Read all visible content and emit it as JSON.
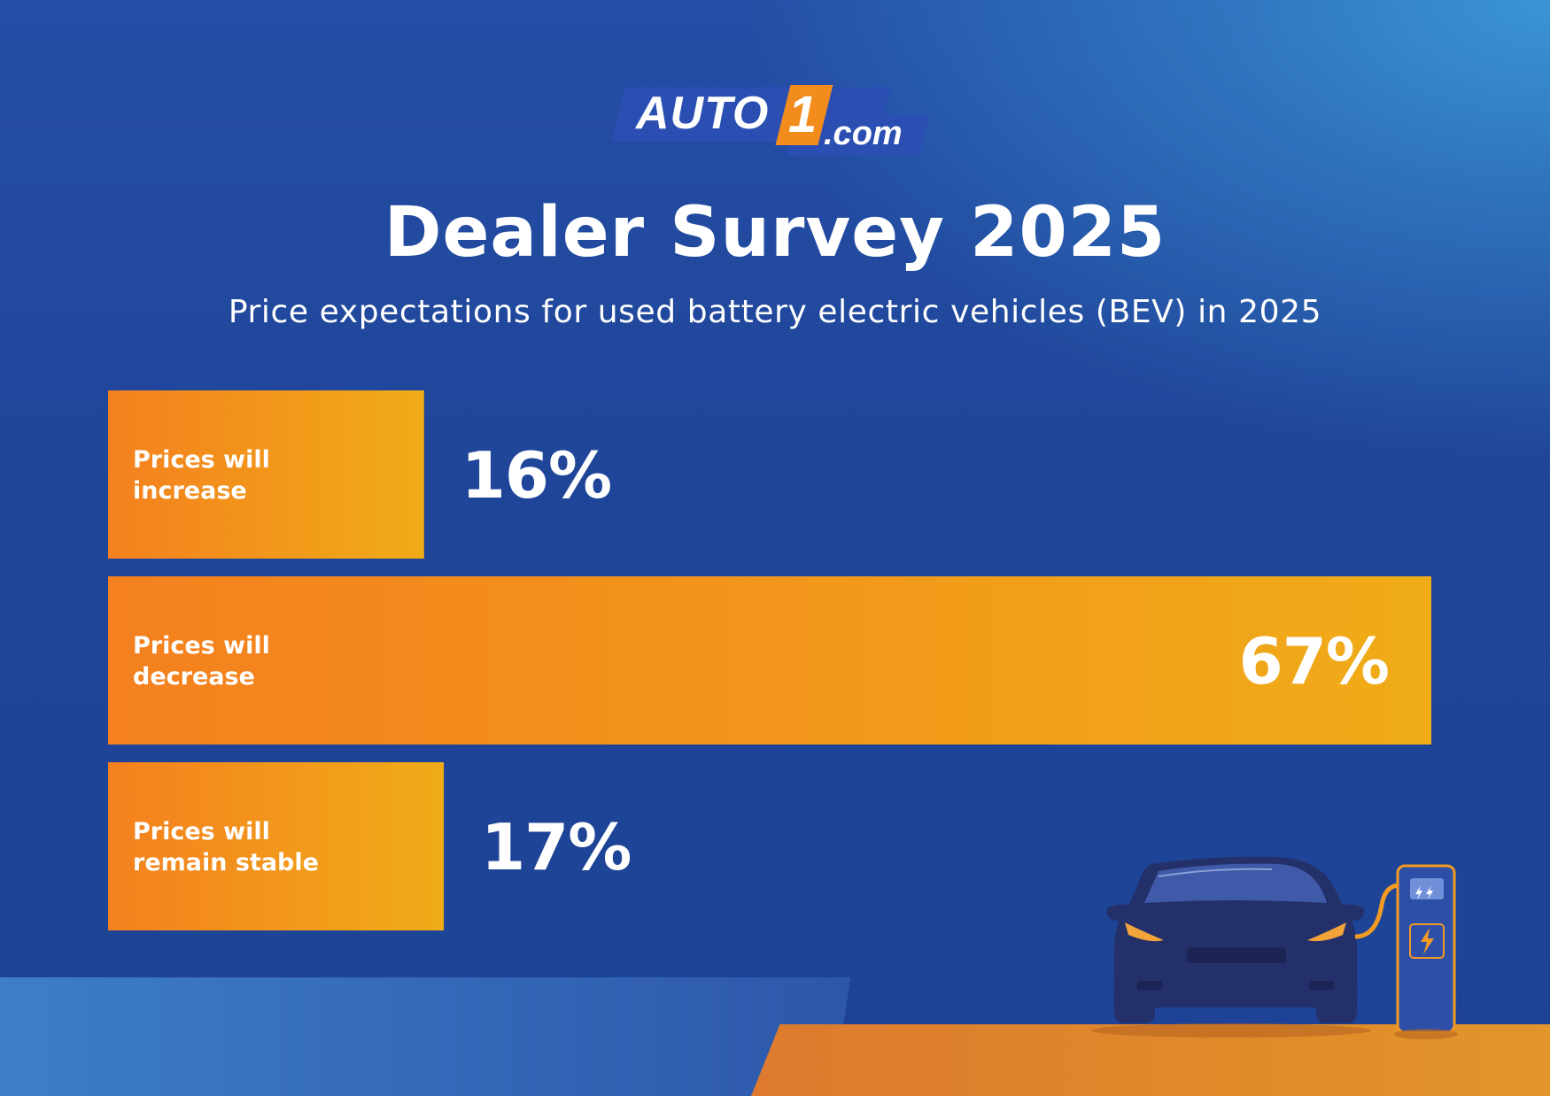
{
  "brand": {
    "logo_text": "AUTO",
    "logo_number": "1",
    "logo_suffix": ".com"
  },
  "colors": {
    "bar_start": "#f4801f",
    "bar_end": "#f0ac18",
    "background": "#1f4598",
    "accent_orange": "#e08a2a"
  },
  "chart_data": {
    "type": "bar",
    "orientation": "horizontal",
    "title": "Dealer Survey 2025",
    "subtitle": "Price expectations for used battery electric vehicles (BEV) in 2025",
    "categories": [
      [
        "Prices will",
        "increase"
      ],
      [
        "Prices will",
        "decrease"
      ],
      [
        "Prices will",
        "remain stable"
      ]
    ],
    "values": [
      16,
      67,
      17
    ],
    "value_labels": [
      "16%",
      "67%",
      "17%"
    ],
    "unit": "%",
    "xlim": [
      0,
      67
    ],
    "grid": false,
    "legend": "none"
  },
  "illustration": {
    "car_icon": "electric-car-icon",
    "charger_icon": "charging-station-icon"
  }
}
